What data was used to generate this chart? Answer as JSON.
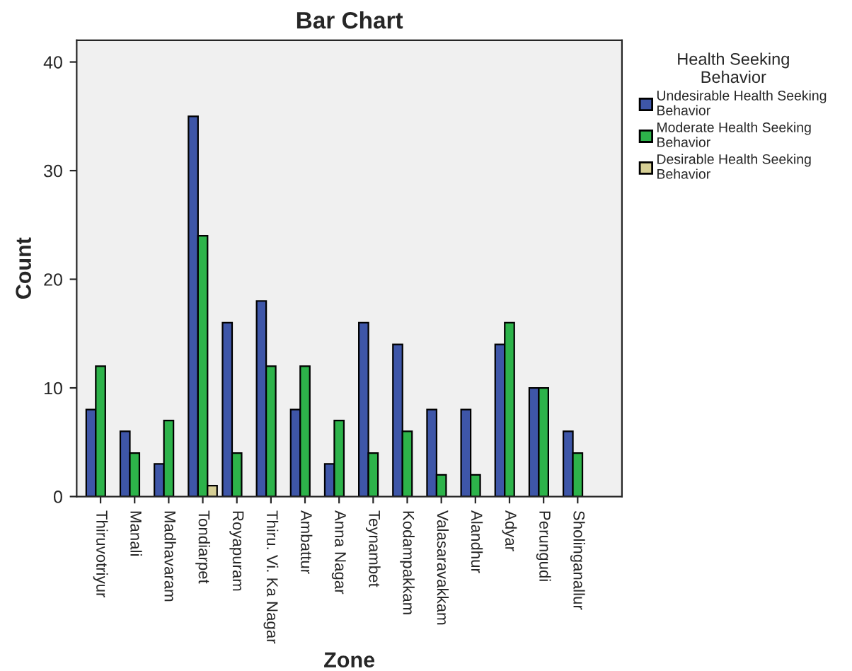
{
  "chart_data": {
    "type": "bar",
    "title": "Bar Chart",
    "xlabel": "Zone",
    "ylabel": "Count",
    "legend_title": "Health Seeking\nBehavior",
    "categories": [
      "Thiruvotriyur",
      "Manali",
      "Madhavaram",
      "Tondiarpet",
      "Royapuram",
      "Thiru. Vi. Ka Nagar",
      "Ambattur",
      "Anna Nagar",
      "Teynambet",
      "Kodampakkam",
      "Valasaravakkam",
      "Alandhur",
      "Adyar",
      "Perungudi",
      "Sholinganallur"
    ],
    "series": [
      {
        "name": "Undesirable Health Seeking\nBehavior",
        "color": "#3e56a8",
        "values": [
          8,
          6,
          3,
          35,
          16,
          18,
          8,
          3,
          16,
          14,
          8,
          8,
          14,
          10,
          6
        ]
      },
      {
        "name": "Moderate Health Seeking\nBehavior",
        "color": "#2db34a",
        "values": [
          12,
          4,
          7,
          24,
          4,
          12,
          12,
          7,
          4,
          6,
          2,
          2,
          16,
          10,
          4
        ]
      },
      {
        "name": "Desirable Health Seeking\nBehavior",
        "color": "#d6cf95",
        "values": [
          null,
          null,
          null,
          1,
          null,
          null,
          null,
          null,
          null,
          null,
          null,
          null,
          null,
          null,
          null
        ]
      }
    ],
    "ylim": [
      0,
      42
    ],
    "yticks": [
      0,
      10,
      20,
      30,
      40
    ],
    "grid": false,
    "legend": "right"
  }
}
